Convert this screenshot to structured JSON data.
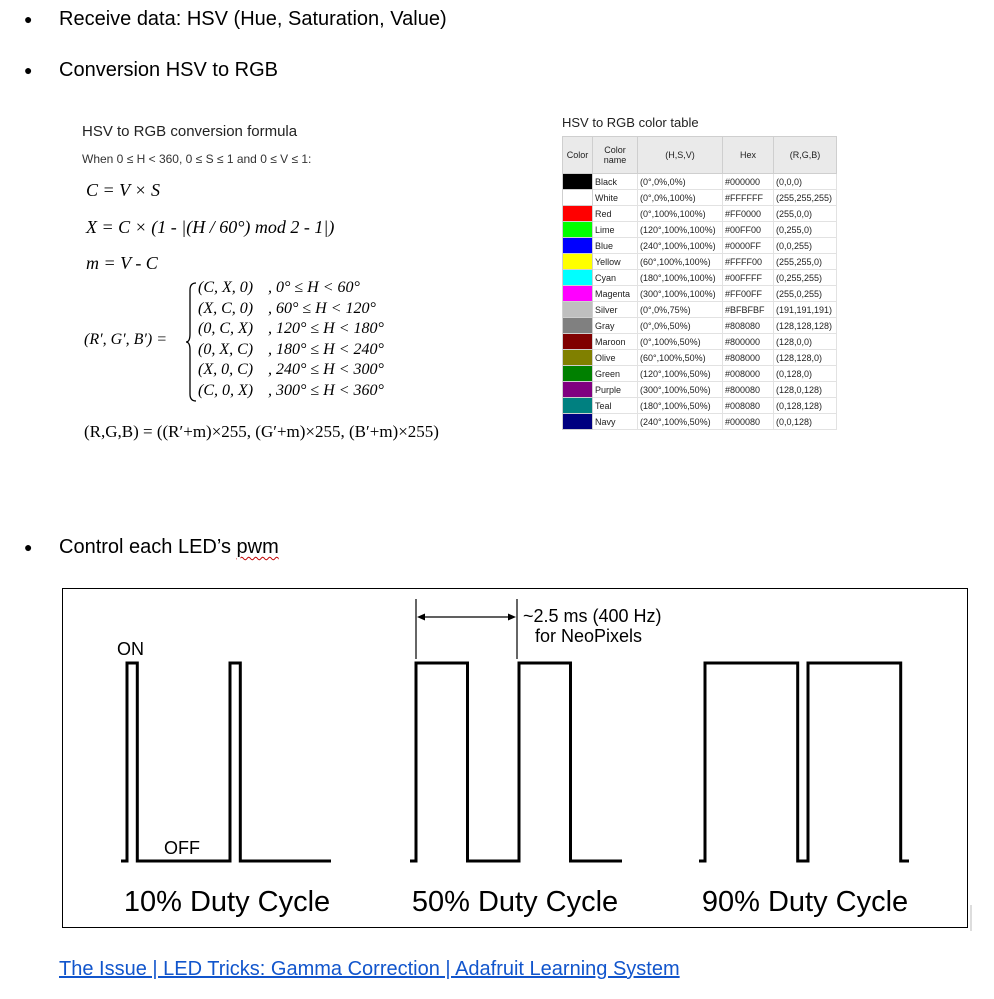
{
  "bullets": [
    {
      "text": "Receive data: HSV (Hue, Saturation, Value)"
    },
    {
      "text": "Conversion HSV to RGB"
    },
    {
      "text_before": "Control each LED’s ",
      "text_flagged": "pwm"
    }
  ],
  "formula": {
    "title": "HSV to RGB conversion formula",
    "condition": "When 0 ≤ H < 360, 0 ≤ S ≤ 1 and 0 ≤ V ≤ 1:",
    "line_c": "C = V × S",
    "line_x": "X = C × (1 - |(H / 60°) mod 2 - 1|)",
    "line_m": "m = V - C",
    "prime_label": "(R′, G′, B′) =",
    "cases": [
      {
        "tuple": "(C, X, 0)",
        "range": ", 0° ≤ H < 60°"
      },
      {
        "tuple": "(X, C, 0)",
        "range": ", 60° ≤ H < 120°"
      },
      {
        "tuple": "(0, C, X)",
        "range": ", 120° ≤ H < 180°"
      },
      {
        "tuple": "(0, X, C)",
        "range": ", 180° ≤ H < 240°"
      },
      {
        "tuple": "(X, 0, C)",
        "range": ", 240° ≤ H < 300°"
      },
      {
        "tuple": "(C, 0, X)",
        "range": ", 300° ≤ H < 360°"
      }
    ],
    "final": "(R,G,B) = ((R′+m)×255, (G′+m)×255, (B′+m)×255)"
  },
  "color_table": {
    "title": "HSV to RGB color table",
    "headers": [
      "Color",
      "Color name",
      "(H,S,V)",
      "Hex",
      "(R,G,B)"
    ],
    "rows": [
      {
        "swatch": "#000000",
        "name": "Black",
        "hsv": "(0°,0%,0%)",
        "hex": "#000000",
        "rgb": "(0,0,0)"
      },
      {
        "swatch": "#FFFFFF",
        "name": "White",
        "hsv": "(0°,0%,100%)",
        "hex": "#FFFFFF",
        "rgb": "(255,255,255)"
      },
      {
        "swatch": "#FF0000",
        "name": "Red",
        "hsv": "(0°,100%,100%)",
        "hex": "#FF0000",
        "rgb": "(255,0,0)"
      },
      {
        "swatch": "#00FF00",
        "name": "Lime",
        "hsv": "(120°,100%,100%)",
        "hex": "#00FF00",
        "rgb": "(0,255,0)"
      },
      {
        "swatch": "#0000FF",
        "name": "Blue",
        "hsv": "(240°,100%,100%)",
        "hex": "#0000FF",
        "rgb": "(0,0,255)"
      },
      {
        "swatch": "#FFFF00",
        "name": "Yellow",
        "hsv": "(60°,100%,100%)",
        "hex": "#FFFF00",
        "rgb": "(255,255,0)"
      },
      {
        "swatch": "#00FFFF",
        "name": "Cyan",
        "hsv": "(180°,100%,100%)",
        "hex": "#00FFFF",
        "rgb": "(0,255,255)"
      },
      {
        "swatch": "#FF00FF",
        "name": "Magenta",
        "hsv": "(300°,100%,100%)",
        "hex": "#FF00FF",
        "rgb": "(255,0,255)"
      },
      {
        "swatch": "#BFBFBF",
        "name": "Silver",
        "hsv": "(0°,0%,75%)",
        "hex": "#BFBFBF",
        "rgb": "(191,191,191)"
      },
      {
        "swatch": "#808080",
        "name": "Gray",
        "hsv": "(0°,0%,50%)",
        "hex": "#808080",
        "rgb": "(128,128,128)"
      },
      {
        "swatch": "#800000",
        "name": "Maroon",
        "hsv": "(0°,100%,50%)",
        "hex": "#800000",
        "rgb": "(128,0,0)"
      },
      {
        "swatch": "#808000",
        "name": "Olive",
        "hsv": "(60°,100%,50%)",
        "hex": "#808000",
        "rgb": "(128,128,0)"
      },
      {
        "swatch": "#008000",
        "name": "Green",
        "hsv": "(120°,100%,50%)",
        "hex": "#008000",
        "rgb": "(0,128,0)"
      },
      {
        "swatch": "#800080",
        "name": "Purple",
        "hsv": "(300°,100%,50%)",
        "hex": "#800080",
        "rgb": "(128,0,128)"
      },
      {
        "swatch": "#008080",
        "name": "Teal",
        "hsv": "(180°,100%,50%)",
        "hex": "#008080",
        "rgb": "(0,128,128)"
      },
      {
        "swatch": "#000080",
        "name": "Navy",
        "hsv": "(240°,100%,50%)",
        "hex": "#000080",
        "rgb": "(0,0,128)"
      }
    ]
  },
  "pwm_figure": {
    "on_label": "ON",
    "off_label": "OFF",
    "period_label_line1": "~2.5 ms (400 Hz)",
    "period_label_line2": "for NeoPixels",
    "duty_cycles": [
      {
        "label": "10% Duty Cycle",
        "duty": 0.1
      },
      {
        "label": "50% Duty Cycle",
        "duty": 0.5
      },
      {
        "label": "90% Duty Cycle",
        "duty": 0.9
      }
    ]
  },
  "link": {
    "text": "The Issue | LED Tricks: Gamma Correction | Adafruit Learning System"
  }
}
